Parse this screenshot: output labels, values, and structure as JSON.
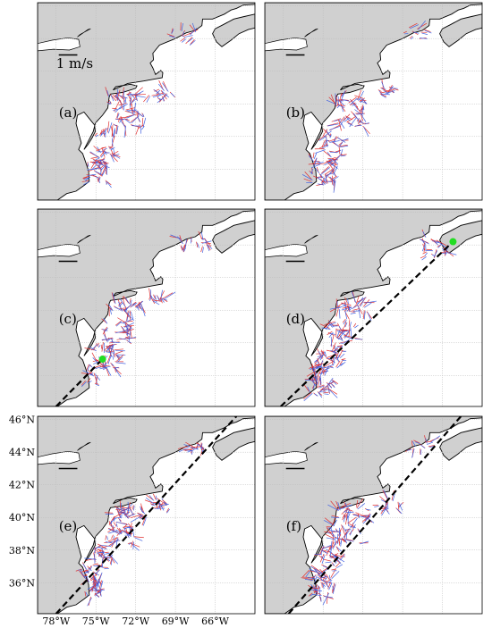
{
  "map": {
    "lon_range": [
      -79.4,
      -63
    ],
    "lat_range": [
      34.1,
      46.2
    ],
    "xticks": [
      {
        "value": -78,
        "label": "78°W"
      },
      {
        "value": -75,
        "label": "75°W"
      },
      {
        "value": -72,
        "label": "72°W"
      },
      {
        "value": -69,
        "label": "69°W"
      },
      {
        "value": -66,
        "label": "66°W"
      }
    ],
    "yticks": [
      {
        "value": 46,
        "label": "46°N"
      },
      {
        "value": 44,
        "label": "44°N"
      },
      {
        "value": 42,
        "label": "42°N"
      },
      {
        "value": 40,
        "label": "40°N"
      },
      {
        "value": 38,
        "label": "38°N"
      },
      {
        "value": 36,
        "label": "36°N"
      }
    ],
    "scale_label": "1 m/s",
    "panels": [
      {
        "label": "(a)"
      },
      {
        "label": "(b)"
      },
      {
        "label": "(c)"
      },
      {
        "label": "(d)"
      },
      {
        "label": "(e)"
      },
      {
        "label": "(f)"
      }
    ]
  }
}
